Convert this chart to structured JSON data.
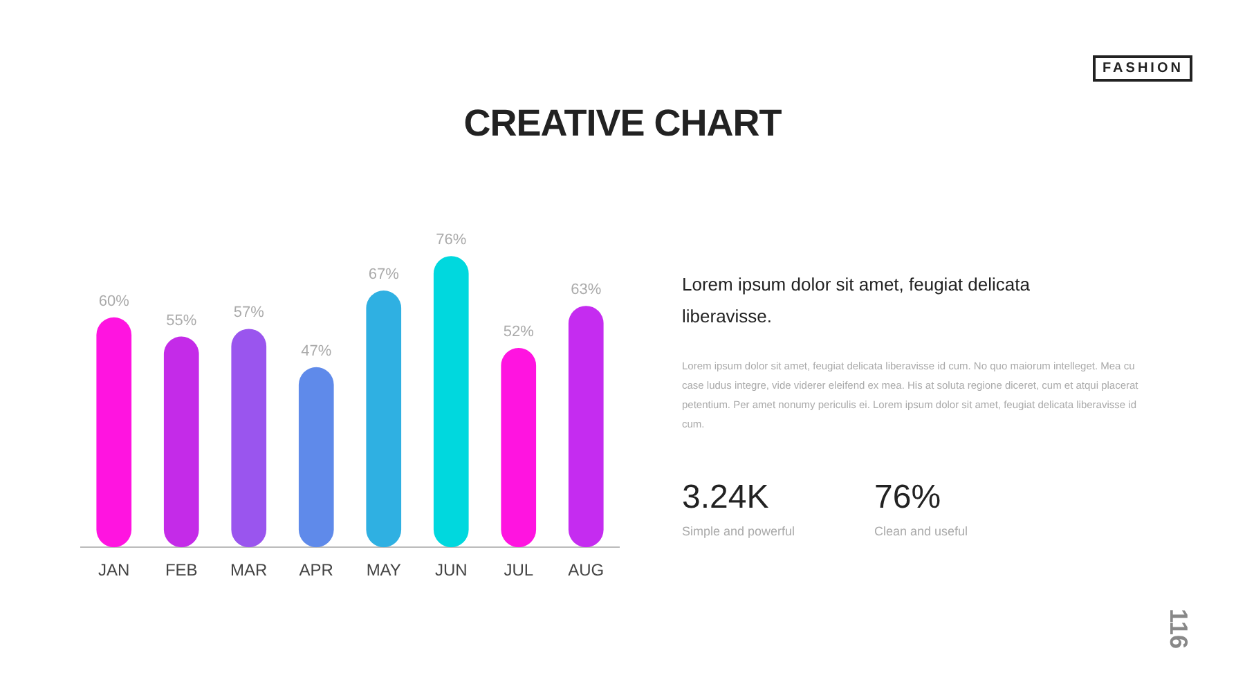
{
  "chart_data": {
    "type": "bar",
    "title": "CREATIVE CHART",
    "categories": [
      "JAN",
      "FEB",
      "MAR",
      "APR",
      "MAY",
      "JUN",
      "JUL",
      "AUG"
    ],
    "values": [
      60,
      55,
      57,
      47,
      67,
      76,
      52,
      63
    ],
    "colors": [
      "#ff14e0",
      "#c42be8",
      "#9a55ee",
      "#5f8aea",
      "#2fb0e2",
      "#00d8de",
      "#ff14e0",
      "#c52cf0"
    ],
    "value_labels": [
      "60%",
      "55%",
      "57%",
      "47%",
      "67%",
      "76%",
      "52%",
      "63%"
    ],
    "tick_labels": "x",
    "grid": false,
    "annotations": [
      "FASHION",
      "Lorem ipsum dolor sit amet, feugiat delicata liberavisse.",
      "Lorem ipsum dolor sit amet, feugiat delicata liberavisse id cum. No quo maiorum intelleget. Mea cu case ludus integre, vide viderer eleifend ex mea. His at soluta regione diceret, cum et atqui placerat petentium. Per amet nonumy periculis ei. Lorem ipsum dolor sit amet, feugiat delicata liberavisse id cum.",
      "3.24K",
      "Simple and powerful",
      "76%",
      "Clean and useful",
      "116"
    ]
  }
}
